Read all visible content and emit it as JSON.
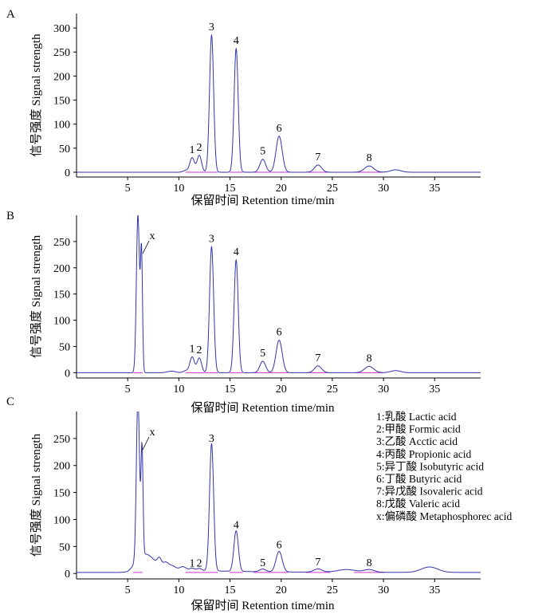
{
  "chart_data": [
    {
      "panel": "A",
      "type": "line",
      "xlabel": "保留时间  Retention time/min",
      "ylabel": "信号强度  Signal strength",
      "xlim": [
        0,
        39.5
      ],
      "ylim": [
        -10,
        330
      ],
      "xticks": [
        5,
        10,
        15,
        20,
        25,
        30,
        35
      ],
      "yticks": [
        0,
        50,
        100,
        150,
        200,
        250,
        300
      ],
      "colors": {
        "signal": "#3333aa",
        "baseline": "#cc33cc"
      },
      "baseline_level": 0,
      "peaks": [
        {
          "label": "1",
          "x": 11.3,
          "y": 30,
          "w": 0.22
        },
        {
          "label": "2",
          "x": 12.0,
          "y": 35,
          "w": 0.22
        },
        {
          "label": "3",
          "x": 13.2,
          "y": 285,
          "w": 0.2
        },
        {
          "label": "4",
          "x": 15.6,
          "y": 257,
          "w": 0.2
        },
        {
          "label": "5",
          "x": 18.2,
          "y": 27,
          "w": 0.28
        },
        {
          "label": "6",
          "x": 19.8,
          "y": 75,
          "w": 0.3
        },
        {
          "label": "7",
          "x": 23.6,
          "y": 15,
          "w": 0.35
        },
        {
          "label": "8",
          "x": 28.6,
          "y": 13,
          "w": 0.45
        }
      ],
      "extra_peaks": [
        {
          "x": 10.7,
          "y": 4,
          "w": 0.25
        },
        {
          "x": 31.2,
          "y": 5,
          "w": 0.5
        }
      ]
    },
    {
      "panel": "B",
      "type": "line",
      "xlabel": "保留时间  Retention time/min",
      "ylabel": "信号强度  Signal strength",
      "xlim": [
        0,
        39.5
      ],
      "ylim": [
        -10,
        300
      ],
      "xticks": [
        5,
        10,
        15,
        20,
        25,
        30,
        35
      ],
      "yticks": [
        0,
        50,
        100,
        150,
        200,
        250
      ],
      "colors": {
        "signal": "#3333aa",
        "baseline": "#cc33cc"
      },
      "baseline_level": 0,
      "peaks": [
        {
          "label": "x",
          "x": 6.0,
          "y": 300,
          "w": 0.15
        },
        {
          "label": "1",
          "x": 11.3,
          "y": 30,
          "w": 0.22
        },
        {
          "label": "2",
          "x": 12.0,
          "y": 28,
          "w": 0.22
        },
        {
          "label": "3",
          "x": 13.2,
          "y": 240,
          "w": 0.2
        },
        {
          "label": "4",
          "x": 15.6,
          "y": 215,
          "w": 0.2
        },
        {
          "label": "5",
          "x": 18.2,
          "y": 22,
          "w": 0.28
        },
        {
          "label": "6",
          "x": 19.8,
          "y": 62,
          "w": 0.3
        },
        {
          "label": "7",
          "x": 23.6,
          "y": 13,
          "w": 0.35
        },
        {
          "label": "8",
          "x": 28.6,
          "y": 12,
          "w": 0.45
        }
      ],
      "extra_peaks": [
        {
          "x": 6.35,
          "y": 225,
          "w": 0.1
        },
        {
          "x": 9.3,
          "y": 3,
          "w": 0.4
        },
        {
          "x": 10.7,
          "y": 4,
          "w": 0.25
        },
        {
          "x": 31.2,
          "y": 4,
          "w": 0.5
        }
      ]
    },
    {
      "panel": "C",
      "type": "line",
      "xlabel": "保留时间  Retention time/min",
      "ylabel": "信号强度  Signal strength",
      "xlim": [
        0,
        39.5
      ],
      "ylim": [
        -10,
        300
      ],
      "xticks": [
        5,
        10,
        15,
        20,
        25,
        30,
        35
      ],
      "yticks": [
        0,
        50,
        100,
        150,
        200,
        250
      ],
      "colors": {
        "signal": "#3333aa",
        "baseline": "#cc33cc"
      },
      "baseline_level": 2,
      "peaks": [
        {
          "label": "x",
          "x": 6.0,
          "y": 300,
          "w": 0.15
        },
        {
          "label": "1",
          "x": 11.3,
          "y": 4,
          "w": 0.22
        },
        {
          "label": "2",
          "x": 12.0,
          "y": 4,
          "w": 0.22
        },
        {
          "label": "3",
          "x": 13.2,
          "y": 235,
          "w": 0.2
        },
        {
          "label": "4",
          "x": 15.6,
          "y": 75,
          "w": 0.22
        },
        {
          "label": "5",
          "x": 18.2,
          "y": 5,
          "w": 0.3
        },
        {
          "label": "6",
          "x": 19.8,
          "y": 38,
          "w": 0.3
        },
        {
          "label": "7",
          "x": 23.6,
          "y": 6,
          "w": 0.4
        },
        {
          "label": "8",
          "x": 28.6,
          "y": 5,
          "w": 0.5
        }
      ],
      "extra_peaks": [
        {
          "x": 6.4,
          "y": 200,
          "w": 0.1
        },
        {
          "x": 6.8,
          "y": 25,
          "w": 0.8
        },
        {
          "x": 8.1,
          "y": 14,
          "w": 0.2
        },
        {
          "x": 8.7,
          "y": 10,
          "w": 0.25
        },
        {
          "x": 9.3,
          "y": 7,
          "w": 0.35
        },
        {
          "x": 10.4,
          "y": 6,
          "w": 0.3
        },
        {
          "x": 26.4,
          "y": 5,
          "w": 0.9
        },
        {
          "x": 34.5,
          "y": 10,
          "w": 0.8
        }
      ],
      "rise": {
        "x0": 5.0,
        "x1": 5.9,
        "level": 10
      },
      "legend": {
        "placement": "right",
        "entries": [
          "1:乳酸  Lactic acid",
          "2:甲酸  Formic acid",
          "3:乙酸  Acctic acid",
          "4:丙酸  Propionic acid",
          "5:异丁酸  Isobutyric acid",
          "6:丁酸  Butyric acid",
          "7:异戊酸  Isovaleric acid",
          "8:戊酸  Valeric acid",
          "x:偏磷酸  Metaphosphorec acid"
        ]
      }
    }
  ]
}
